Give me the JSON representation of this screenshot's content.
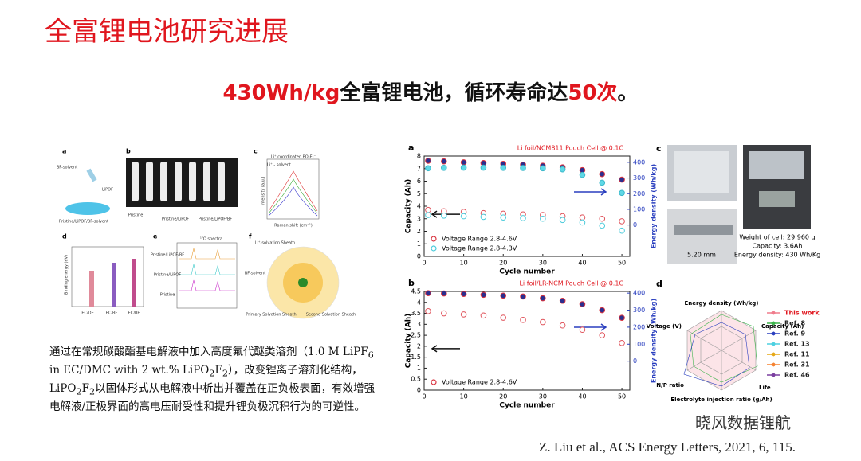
{
  "header": {
    "title": "全富锂电池研究进展"
  },
  "headline": {
    "parts": [
      {
        "text": "430Wh/kg",
        "color": "#e0161e"
      },
      {
        "text": "全富锂电池，循环寿命达",
        "color": "#111111"
      },
      {
        "text": "50次",
        "color": "#e0161e"
      },
      {
        "text": "。",
        "color": "#111111"
      }
    ]
  },
  "figure_left": {
    "panels": [
      {
        "label": "a",
        "texts": [
          "BF-solvent",
          "LiPOF",
          "Pristine/LiPOF/BF-solvent"
        ]
      },
      {
        "label": "b",
        "texts": [
          "Pristine",
          "Pristine/LiPOF",
          "Pristine/LiPOF/BF"
        ]
      },
      {
        "label": "c",
        "texts": [
          "Li⁺ coordinated PO₂F₂⁻",
          "Li⁺ - solvent",
          "Raman shift (cm⁻¹)",
          "Intensity (a.u.)"
        ]
      },
      {
        "label": "d",
        "texts": [
          "Binding energy (eV)",
          "EC/DE",
          "EC/BF",
          "EC/BF"
        ]
      },
      {
        "label": "e",
        "texts": [
          "¹⁷O spectra",
          "Pristine/LiPOF/BF",
          "Pristine/LiPOF",
          "Pristine"
        ]
      },
      {
        "label": "f",
        "texts": [
          "Li⁺-solvation Sheath",
          "BF-solvent",
          "Primary Solvation Sheath",
          "Second Solvation Sheath"
        ]
      }
    ]
  },
  "paragraph": {
    "lines": [
      [
        {
          "text": "通过在常规碳酸酯基电解液中加入高度氟代醚类溶剂（1.0 M LiPF"
        },
        {
          "sub": "6"
        }
      ],
      [
        {
          "text": "in EC/DMC with 2 wt.% LiPO"
        },
        {
          "sub": "2"
        },
        {
          "text": "F"
        },
        {
          "sub": "2"
        },
        {
          "text": "），改变锂离子溶剂化结构，"
        }
      ],
      [
        {
          "text": "LiPO"
        },
        {
          "sub": "2"
        },
        {
          "text": "F"
        },
        {
          "sub": "2"
        },
        {
          "text": "以固体形式从电解液中析出并覆盖在正负极表面，有效增强"
        }
      ],
      [
        {
          "text": "电解液/正极界面的高电压耐受性和提升锂负极沉积行为的可逆性。"
        }
      ]
    ]
  },
  "chart_data": [
    {
      "type": "scatter",
      "panel": "a",
      "title": "Li foil/NCM811 Pouch Cell @ 0.1C",
      "xlabel": "Cycle number",
      "ylabel": "Capacity (Ah)",
      "y2label": "Energy density (Wh/kg)",
      "x": [
        1,
        5,
        10,
        15,
        20,
        25,
        30,
        35,
        40,
        45,
        50
      ],
      "xlim": [
        0,
        52
      ],
      "xticks": [
        0,
        10,
        20,
        30,
        40,
        50
      ],
      "ylim": [
        0,
        8
      ],
      "yticks": [
        0,
        1,
        2,
        3,
        4,
        5,
        6,
        7,
        8
      ],
      "y2lim": [
        -200,
        440
      ],
      "y2ticks": [
        0,
        100,
        200,
        300,
        400
      ],
      "series": [
        {
          "color": "#2a2f8f",
          "stroke": "#d9333f",
          "filled": true,
          "axis": "y2",
          "values": [
            410,
            406,
            400,
            395,
            390,
            385,
            378,
            368,
            350,
            325,
            290
          ]
        },
        {
          "color": "#5fd8e6",
          "stroke": "#3bb7c9",
          "filled": true,
          "axis": "y2",
          "values": [
            362,
            365,
            366,
            366,
            365,
            364,
            362,
            355,
            320,
            270,
            205
          ]
        },
        {
          "color": "#ffffff",
          "stroke": "#e0565e",
          "filled": false,
          "axis": "y",
          "values": [
            3.7,
            3.6,
            3.55,
            3.45,
            3.4,
            3.35,
            3.3,
            3.2,
            3.1,
            3.0,
            2.8
          ]
        },
        {
          "color": "#ffffff",
          "stroke": "#4ccbdb",
          "filled": false,
          "axis": "y",
          "values": [
            3.3,
            3.25,
            3.2,
            3.15,
            3.1,
            3.05,
            3.0,
            2.9,
            2.7,
            2.45,
            2.05
          ]
        }
      ],
      "legend": [
        {
          "text": "Voltage Range 2.8-4.6V",
          "color": "#d9333f"
        },
        {
          "text": "Voltage Range 2.8-4.3V",
          "color": "#4ccbdb"
        }
      ]
    },
    {
      "type": "scatter",
      "panel": "b",
      "title": "Li foil/LR-NCM Pouch Cell @ 0.1C",
      "xlabel": "Cycle number",
      "ylabel": "Capacity (Ah)",
      "y2label": "Energy density (Wh/kg)",
      "x": [
        1,
        5,
        10,
        15,
        20,
        25,
        30,
        35,
        40,
        45,
        50
      ],
      "xlim": [
        0,
        52
      ],
      "xticks": [
        0,
        10,
        20,
        30,
        40,
        50
      ],
      "ylim": [
        0,
        4.5
      ],
      "yticks": [
        0,
        0.5,
        1,
        1.5,
        2,
        2.5,
        3,
        3.5,
        4,
        4.5
      ],
      "y2lim": [
        -170,
        410
      ],
      "y2ticks": [
        0,
        100,
        200,
        300,
        400
      ],
      "series": [
        {
          "color": "#2a2f8f",
          "stroke": "#d9333f",
          "filled": true,
          "axis": "y2",
          "values": [
            400,
            398,
            395,
            390,
            385,
            380,
            370,
            355,
            335,
            300,
            255
          ]
        },
        {
          "color": "#ffffff",
          "stroke": "#e0565e",
          "filled": false,
          "axis": "y",
          "values": [
            3.6,
            3.5,
            3.45,
            3.4,
            3.3,
            3.2,
            3.1,
            2.95,
            2.75,
            2.5,
            2.15
          ]
        }
      ],
      "legend": [
        {
          "text": "Voltage Range 2.8-4.6V",
          "color": "#d9333f"
        }
      ]
    }
  ],
  "figure_right": {
    "c": {
      "label": "c",
      "thickness": "5.20 mm",
      "specs": [
        "Weight of cell: 29.960 g",
        "Capacity: 3.6Ah",
        "Energy density: 430 Wh/Kg"
      ]
    },
    "d": {
      "label": "d",
      "axes": [
        "Energy density (Wh/kg)",
        "Capacity (Ah)",
        "Life",
        "Electrolyte injection ratio (g/Ah)",
        "N/P ratio",
        "Voltage (V)"
      ],
      "legend": [
        {
          "text": "This work",
          "color": "#f07c8c"
        },
        {
          "text": "Ref. 8",
          "color": "#3cb44b"
        },
        {
          "text": "Ref. 9",
          "color": "#2a3fbf"
        },
        {
          "text": "Ref. 13",
          "color": "#4dd0e1"
        },
        {
          "text": "Ref. 11",
          "color": "#e6a817"
        },
        {
          "text": "Ref. 31",
          "color": "#f58231"
        },
        {
          "text": "Ref. 46",
          "color": "#7b3fa0"
        }
      ]
    }
  },
  "citation": "Z. Liu et al., ACS Energy Letters, 2021, 6, 115.",
  "watermark": "晓风数据锂航"
}
